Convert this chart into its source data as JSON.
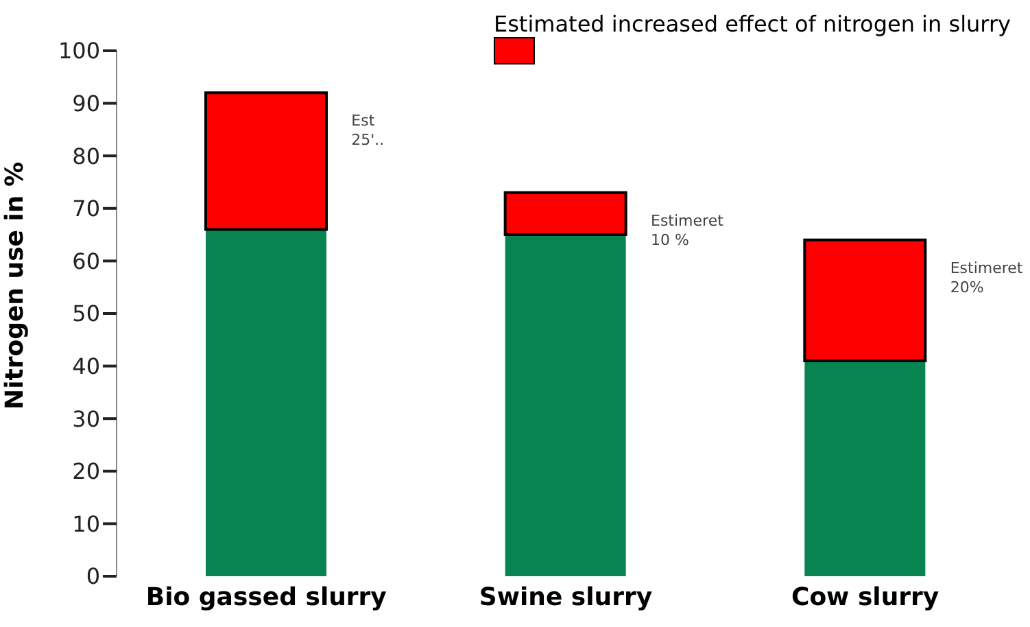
{
  "chart_data": {
    "type": "bar",
    "stacked": true,
    "ylabel": "Nitrogen use in %",
    "categories": [
      "Bio gassed slurry",
      "Swine slurry",
      "Cow slurry"
    ],
    "series": [
      {
        "color": "#078450",
        "values": [
          66,
          65,
          41
        ]
      },
      {
        "name": "Estimated increased effect of nitrogen in slurry",
        "color": "#ff0000",
        "values": [
          26,
          8,
          23
        ]
      }
    ],
    "ylim": [
      0,
      100
    ],
    "yticks": [
      0,
      10,
      20,
      30,
      40,
      50,
      60,
      70,
      80,
      90,
      100
    ],
    "grid": false,
    "legend": "top right",
    "annotations": [
      "Est\n25'..",
      "Estimeret\n10 %",
      "Estimeret\n20%"
    ]
  }
}
